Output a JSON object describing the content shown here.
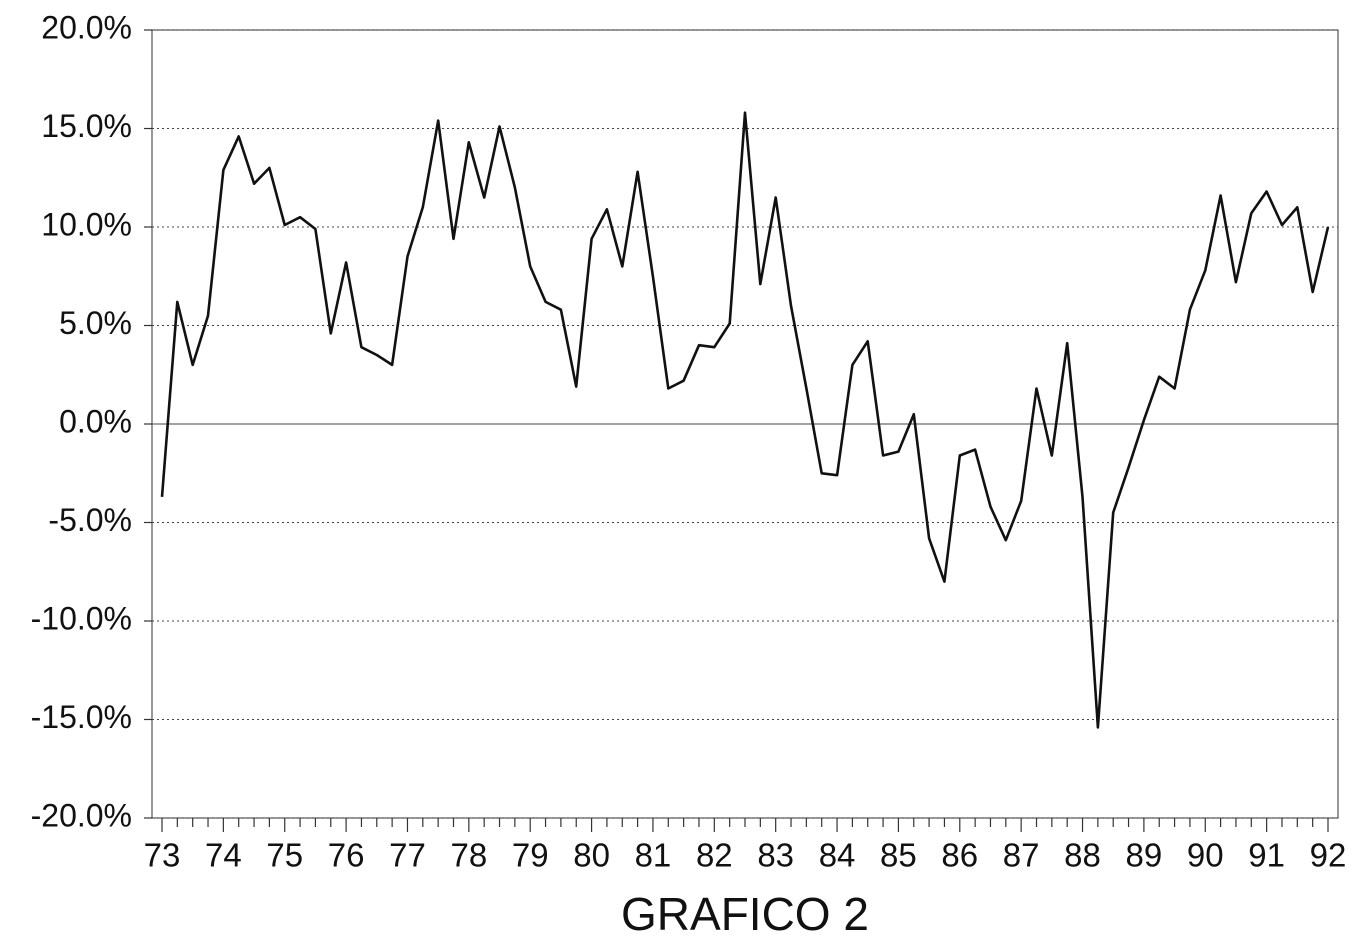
{
  "chart_data": {
    "type": "line",
    "title": "GRAFICO 2",
    "categories": [
      "73",
      null,
      null,
      null,
      "74",
      null,
      null,
      null,
      "75",
      null,
      null,
      null,
      "76",
      null,
      null,
      null,
      "77",
      null,
      null,
      null,
      "78",
      null,
      null,
      null,
      "79",
      null,
      null,
      null,
      "80",
      null,
      null,
      null,
      "81",
      null,
      null,
      null,
      "82",
      null,
      null,
      null,
      "83",
      null,
      null,
      null,
      "84",
      null,
      null,
      null,
      "85",
      null,
      null,
      null,
      "86",
      null,
      null,
      null,
      "87",
      null,
      null,
      null,
      "88",
      null,
      null,
      null,
      "89",
      null,
      null,
      null,
      "90",
      null,
      null,
      null,
      "91",
      null,
      null,
      null,
      "92"
    ],
    "values": [
      -3.7,
      6.2,
      3.0,
      5.5,
      12.9,
      14.6,
      12.2,
      13.0,
      10.1,
      10.5,
      9.9,
      4.6,
      8.2,
      3.9,
      3.5,
      3.0,
      8.5,
      11.0,
      15.4,
      9.4,
      14.3,
      11.5,
      15.1,
      12.0,
      8.0,
      6.2,
      5.8,
      1.9,
      9.4,
      10.9,
      8.0,
      12.8,
      7.5,
      1.8,
      2.2,
      4.0,
      3.9,
      5.1,
      15.8,
      7.1,
      11.5,
      6.0,
      1.8,
      -2.5,
      -2.6,
      3.0,
      4.2,
      -1.6,
      -1.4,
      0.5,
      -5.8,
      -8.0,
      -1.6,
      -1.3,
      -4.2,
      -5.9,
      -3.9,
      1.8,
      -1.6,
      4.1,
      -3.7,
      -15.4,
      -4.5,
      -2.2,
      0.2,
      2.4,
      1.8,
      5.8,
      7.8,
      11.6,
      7.2,
      10.7,
      11.8,
      10.1,
      11.0,
      6.7,
      10.0
    ],
    "color": "#111111",
    "ylim": [
      -20,
      20
    ],
    "yticks": [
      {
        "value": -20,
        "label": "-20.0%"
      },
      {
        "value": -15,
        "label": "-15.0%"
      },
      {
        "value": -10,
        "label": "-10.0%"
      },
      {
        "value": -5,
        "label": "-5.0%"
      },
      {
        "value": 0,
        "label": "0.0%"
      },
      {
        "value": 5,
        "label": "5.0%"
      },
      {
        "value": 10,
        "label": "10.0%"
      },
      {
        "value": 15,
        "label": "15.0%"
      },
      {
        "value": 20,
        "label": "20.0%"
      }
    ],
    "grid": true
  }
}
